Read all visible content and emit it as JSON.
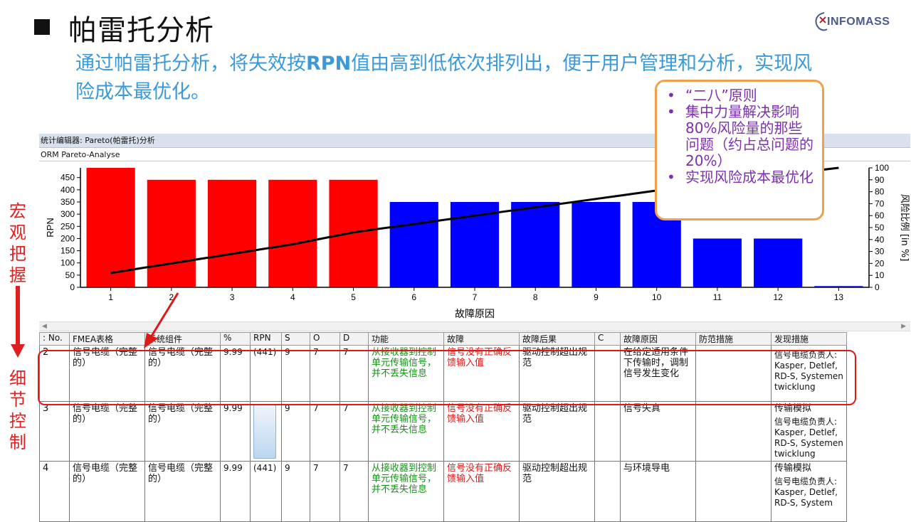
{
  "slide": {
    "title": "帕雷托分析",
    "subtitle_a": "通过帕雷托分析，将失效按",
    "subtitle_b": "RPN",
    "subtitle_c": "值由高到低依次排列出，便于用户管理和分析，实现风险成本最优化。",
    "logo_text": "INFOMASS"
  },
  "side_labels": {
    "macro": [
      "宏",
      "观",
      "把",
      "握"
    ],
    "detail": [
      "细",
      "节",
      "控",
      "制"
    ]
  },
  "callout": {
    "items": [
      "“二八”原则",
      "集中力量解决影响80%风险量的那些问题（约占总问题的20%）",
      "实现风险成本最优化"
    ]
  },
  "window": {
    "title": "统计编辑器: Pareto(帕雷托)分析",
    "subtitle": "ORM Pareto-Analyse"
  },
  "chart_data": {
    "type": "bar",
    "categories": [
      "1",
      "2",
      "3",
      "4",
      "5",
      "6",
      "7",
      "8",
      "9",
      "10",
      "11",
      "12",
      "13"
    ],
    "series": [
      {
        "values": [
          490,
          441,
          441,
          441,
          441,
          350,
          350,
          350,
          350,
          350,
          200,
          200,
          5
        ]
      }
    ],
    "line": [
      {
        "x": 1,
        "y": 12
      },
      {
        "x": 2,
        "y": 20
      },
      {
        "x": 3,
        "y": 28
      },
      {
        "x": 4,
        "y": 36
      },
      {
        "x": 5,
        "y": 46
      },
      {
        "x": 6,
        "y": 53
      },
      {
        "x": 7,
        "y": 60
      },
      {
        "x": 8,
        "y": 67
      },
      {
        "x": 9,
        "y": 74
      },
      {
        "x": 10,
        "y": 81
      },
      {
        "x": 11,
        "y": 88
      },
      {
        "x": 12,
        "y": 94
      },
      {
        "x": 13,
        "y": 100
      }
    ],
    "bar_colors": [
      "#ff0000",
      "#ff0000",
      "#ff0000",
      "#ff0000",
      "#ff0000",
      "#0000ff",
      "#0000ff",
      "#0000ff",
      "#0000ff",
      "#0000ff",
      "#0000ff",
      "#0000ff",
      "#0000ff"
    ],
    "xlabel": "故障原因",
    "ylabel": "RPN",
    "y2label": "风险比例 [in %]",
    "ylim": [
      0,
      490
    ],
    "y2lim": [
      0,
      100
    ],
    "yticks": [
      0,
      50,
      100,
      150,
      200,
      250,
      300,
      350,
      400,
      450
    ],
    "y2ticks": [
      0,
      10,
      20,
      30,
      40,
      50,
      60,
      70,
      80,
      90,
      100
    ],
    "grid": false
  },
  "table": {
    "headers": [
      ": No.",
      "FMEA表格",
      "系统组件",
      "%",
      "RPN",
      "S",
      "O",
      "D",
      "功能",
      "故障",
      "故障后果",
      "C",
      "故障原因",
      "防范措施",
      "发现措施"
    ],
    "rows": [
      {
        "no": "2",
        "fmea": "信号电缆（完整的）",
        "component": "信号电缆（完整的）",
        "pct": "9.99",
        "rpn": "(441)",
        "s": "9",
        "o": "7",
        "d": "7",
        "function": "从接收器到控制单元传输信号，并不丢失信息",
        "failure": "信号没有正确反馈输入值",
        "effect": "驱动控制超出规范",
        "c": "",
        "cause": "在给定适用条件下传输时，调制信号发生变化",
        "prevention": "",
        "detect_title": "",
        "detect_body": "信号电缆负责人: Kasper, Detlef, RD-S, Systementwicklung"
      },
      {
        "no": "3",
        "fmea": "信号电缆（完整的）",
        "component": "信号电缆（完整的）",
        "pct": "9.99",
        "rpn": "",
        "s": "9",
        "o": "7",
        "d": "7",
        "function": "从接收器到控制单元传输信号，并不丢失信息",
        "failure": "信号没有正确反馈输入值",
        "effect": "驱动控制超出规范",
        "c": "",
        "cause": "信号失真",
        "prevention": "",
        "detect_title": "传输模拟",
        "detect_body": "信号电缆负责人: Kasper, Detlef, RD-S, Systementwicklung"
      },
      {
        "no": "4",
        "fmea": "信号电缆（完整的）",
        "component": "信号电缆（完整的）",
        "pct": "9.99",
        "rpn": "(441)",
        "s": "9",
        "o": "7",
        "d": "7",
        "function": "从接收器到控制单元传输信号，并不丢失信息",
        "failure": "信号没有正确反馈输入值",
        "effect": "驱动控制超出规范",
        "c": "",
        "cause": "与环境导电",
        "prevention": "",
        "detect_title": "传输模拟",
        "detect_body": "信号电缆负责人: Kasper, Detlef, RD-S, System"
      }
    ]
  }
}
